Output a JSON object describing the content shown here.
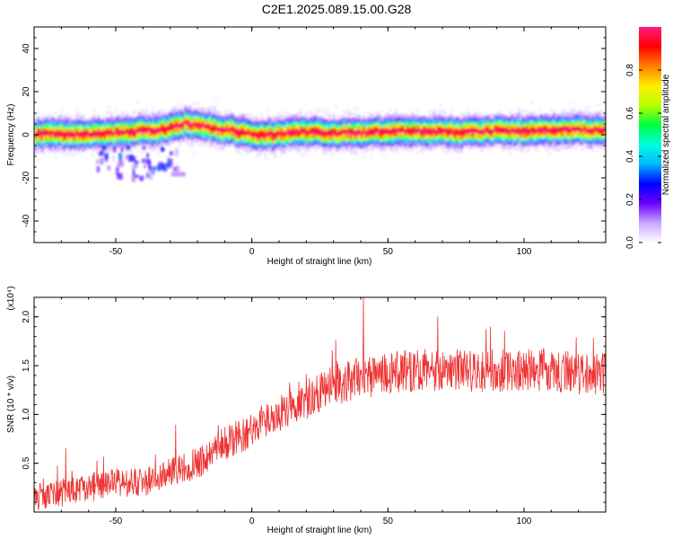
{
  "title": "C2E1.2025.089.15.00.G28",
  "colors": {
    "snr_line": "#ee3333",
    "colormap": [
      "#ffffff",
      "#c9a6ff",
      "#6a00ff",
      "#0000ff",
      "#00b8ff",
      "#00ffe0",
      "#00ff40",
      "#b8ff00",
      "#ffee00",
      "#ff8000",
      "#ff0000",
      "#ff1a80"
    ]
  },
  "chart_data": [
    {
      "type": "heatmap",
      "xlabel": "Height of straight line (km)",
      "ylabel": "Frequency (Hz)",
      "xlim": [
        -80,
        130
      ],
      "ylim": [
        -50,
        50
      ],
      "xticks": [
        -50,
        0,
        50,
        100
      ],
      "yticks": [
        -40,
        -20,
        0,
        20,
        40
      ],
      "colorbar": {
        "label": "Normalized spectral amplitude",
        "range": [
          0,
          1
        ],
        "ticks": [
          "0.0",
          "0.2",
          "0.4",
          "0.6",
          "0.8"
        ],
        "placement": "right"
      },
      "ridge": {
        "x": [
          -80,
          -60,
          -45,
          -35,
          -30,
          -25,
          -20,
          -15,
          -10,
          -5,
          0,
          5,
          10,
          20,
          30,
          40,
          50,
          60,
          70,
          80,
          90,
          100,
          110,
          120,
          130
        ],
        "frequency_hz": [
          0,
          0,
          1,
          2,
          3,
          5,
          4,
          3,
          2,
          1,
          0,
          -0.5,
          0.5,
          1,
          0.5,
          1,
          1,
          1.5,
          1,
          1,
          1.5,
          1.5,
          2,
          2,
          2
        ],
        "halfwidth_hz": 5
      },
      "scatter_region": {
        "x": [
          -58,
          -28
        ],
        "frequency_hz": [
          -20,
          -5
        ]
      },
      "isolated_spots": [
        {
          "x": -27,
          "frequency_hz": -18.5
        }
      ]
    },
    {
      "type": "line",
      "xlabel": "Height of straight line (km)",
      "ylabel": "SNR (10 * v/v)",
      "y_multiplier": "(x10⁴)",
      "xlim": [
        -80,
        130
      ],
      "ylim": [
        0,
        2.2
      ],
      "xticks": [
        -50,
        0,
        50,
        100
      ],
      "yticks": [
        "0.5",
        "1.0",
        "1.5",
        "2.0"
      ],
      "series": [
        {
          "x": [
            -80,
            -70,
            -60,
            -50,
            -40,
            -30,
            -20,
            -10,
            0,
            10,
            20,
            30,
            40,
            50,
            60,
            70,
            80,
            90,
            100,
            110,
            120,
            130
          ],
          "y": [
            0.15,
            0.2,
            0.25,
            0.3,
            0.3,
            0.4,
            0.5,
            0.7,
            0.85,
            1.0,
            1.15,
            1.3,
            1.38,
            1.42,
            1.45,
            1.45,
            1.45,
            1.45,
            1.45,
            1.45,
            1.42,
            1.42
          ],
          "noise_amplitude": 0.22,
          "peak_max": {
            "x": 41,
            "y": 2.2
          }
        }
      ]
    }
  ]
}
